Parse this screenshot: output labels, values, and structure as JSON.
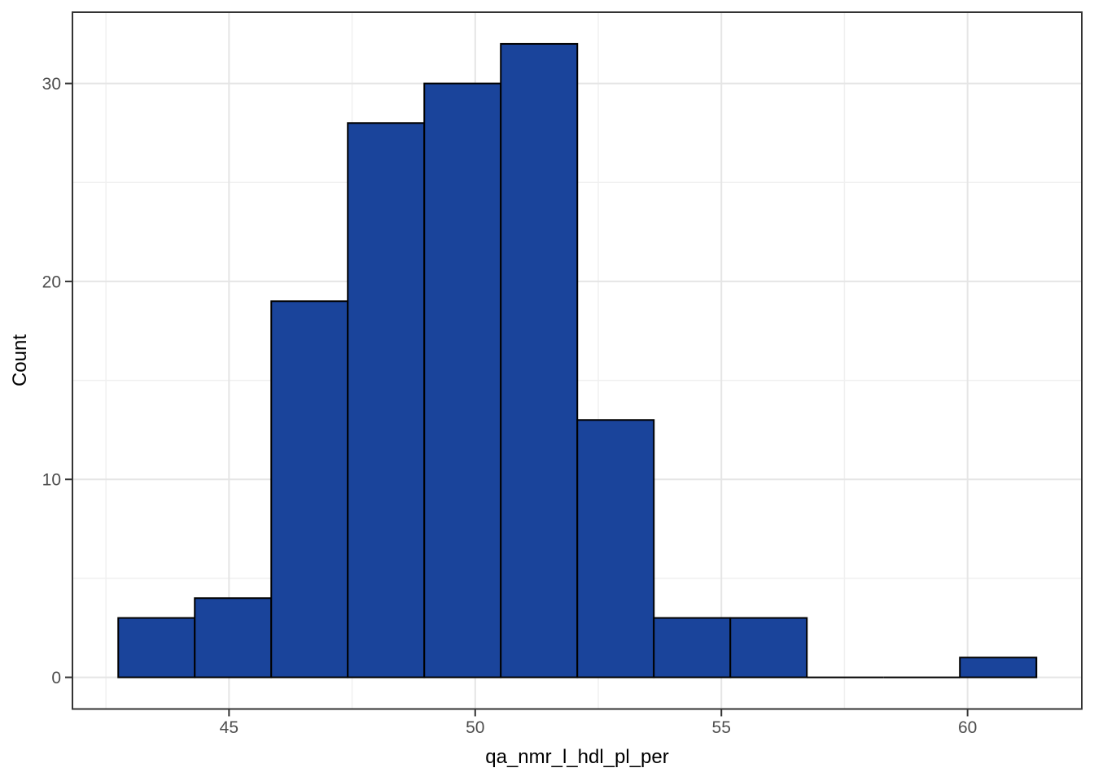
{
  "chart_data": {
    "type": "bar",
    "subtype": "histogram",
    "title": "",
    "xlabel": "qa_nmr_l_hdl_pl_per",
    "ylabel": "Count",
    "bin_start": 42.75,
    "bin_width": 1.554,
    "counts": [
      3,
      4,
      19,
      28,
      30,
      32,
      13,
      3,
      3,
      0,
      0,
      1
    ],
    "total_observations": 136,
    "x_ticks": [
      45,
      50,
      55,
      60
    ],
    "y_ticks": [
      0,
      10,
      20,
      30
    ],
    "x_minor_gridlines": [
      42.5,
      47.5,
      52.5,
      57.5
    ],
    "y_minor_gridlines": [
      5,
      15,
      25
    ],
    "xlim": [
      41.82,
      62.32
    ],
    "ylim": [
      -1.6,
      33.6
    ],
    "grid": "on",
    "legend": "none",
    "colors": {
      "bar_fill": "#1a449b",
      "bar_stroke": "#000000",
      "grid_major": "#e5e5e5",
      "grid_minor": "#f0f0f0",
      "panel_border": "#333333",
      "tick_mark": "#333333",
      "tick_label": "#4d4d4d",
      "axis_title": "#000000",
      "background": "#ffffff"
    }
  }
}
